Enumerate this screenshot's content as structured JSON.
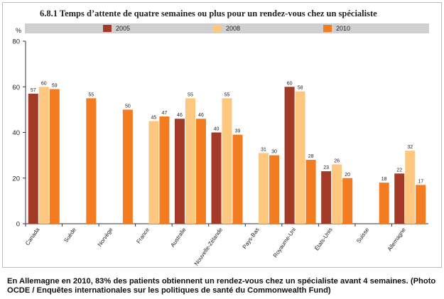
{
  "figure": {
    "title": "6.8.1  Temps d’attente de quatre semaines ou plus pour un rendez-vous chez un spécialiste",
    "caption": "En Allemagne en 2010, 83% des patients obtiennent un rendez-vous chez un spécialiste avant 4 semaines. (Photo OCDE / Enquêtes internationales sur les politiques de santé du Commonwealth Fund)"
  },
  "chart_data": {
    "type": "bar",
    "title": "6.8.1  Temps d’attente de quatre semaines ou plus pour un rendez-vous chez un spécialiste",
    "ylabel": "%",
    "xlabel": "",
    "ylim": [
      0,
      80
    ],
    "yticks": [
      0,
      20,
      40,
      60,
      80
    ],
    "grid": false,
    "legend": "top",
    "categories": [
      "Canada",
      "Suède",
      "Norvège",
      "France",
      "Australie",
      "Nouvelle-Zélande",
      "Pays-Bas",
      "Royaume-Uni",
      "États-Unis",
      "Suisse",
      "Allemagne"
    ],
    "series": [
      {
        "name": "2005",
        "color": "#a33a27",
        "values": [
          57,
          null,
          null,
          null,
          46,
          40,
          null,
          60,
          23,
          null,
          22
        ]
      },
      {
        "name": "2008",
        "color": "#fdc77f",
        "values": [
          60,
          null,
          null,
          45,
          55,
          55,
          31,
          58,
          26,
          null,
          32
        ]
      },
      {
        "name": "2010",
        "color": "#f47c20",
        "values": [
          59,
          55,
          50,
          47,
          46,
          39,
          30,
          28,
          20,
          18,
          17
        ]
      }
    ]
  }
}
